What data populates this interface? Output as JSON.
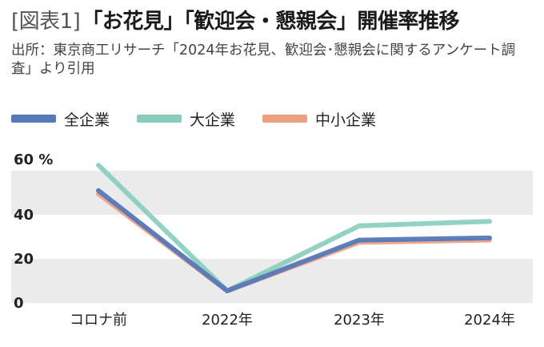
{
  "figure": {
    "tag": "[図表1]",
    "title": "「お花見」「歓迎会・懇親会」開催率推移",
    "source": "出所：東京商工リサーチ「2024年お花見、歓迎会･懇親会に関するアンケート調査」より引用"
  },
  "colors": {
    "all": "#5479b9",
    "large": "#86cdbe",
    "small": "#ee9f7f",
    "band": "#ebebeb"
  },
  "chart_data": {
    "type": "line",
    "categories": [
      "コロナ前",
      "2022年",
      "2023年",
      "2024年"
    ],
    "y_unit": "%",
    "y_ticks": [
      "60",
      "40",
      "20",
      "0"
    ],
    "ylim": [
      0,
      60
    ],
    "grid": "alternating horizontal bands",
    "series": [
      {
        "name": "全企業",
        "values": [
          51,
          5.5,
          28.5,
          29.5
        ]
      },
      {
        "name": "大企業",
        "values": [
          62.5,
          5.5,
          35,
          37
        ]
      },
      {
        "name": "中小企業",
        "values": [
          49.5,
          5.5,
          27.5,
          28.5
        ]
      }
    ]
  }
}
